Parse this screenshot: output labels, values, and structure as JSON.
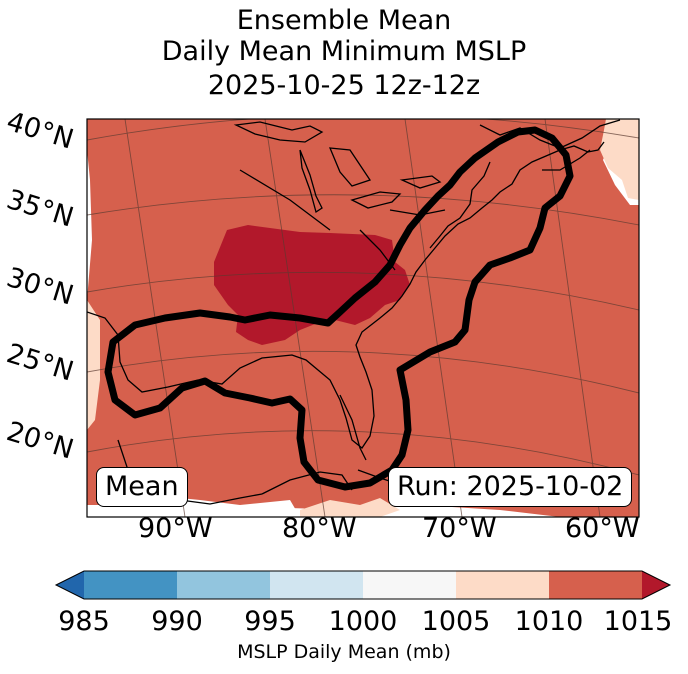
{
  "title": {
    "line1": "Ensemble Mean",
    "line2": "Daily Mean Minimum MSLP",
    "line3": "2025-10-25 12z-12z"
  },
  "map": {
    "lat_labels": [
      "40°N",
      "35°N",
      "30°N",
      "25°N",
      "20°N"
    ],
    "lon_labels": [
      "90°W",
      "80°W",
      "70°W",
      "60°W"
    ],
    "mean_tag": "Mean",
    "run_tag": "Run: 2025-10-02",
    "colors": {
      "field_1010_1015": "#d6604d",
      "field_1015_plus": "#b2182b",
      "field_1005_1010": "#fddbc7",
      "contour": "#000000",
      "coast": "#000000",
      "grid": "#5a3a30"
    }
  },
  "colorbar": {
    "ticks": [
      "985",
      "990",
      "995",
      "1000",
      "1005",
      "1010",
      "1015"
    ],
    "label": "MSLP Daily Mean (mb)",
    "bins": [
      {
        "from": 985,
        "to": 990,
        "color": "#4393c3"
      },
      {
        "from": 990,
        "to": 995,
        "color": "#92c5de"
      },
      {
        "from": 995,
        "to": 1000,
        "color": "#d1e5f0"
      },
      {
        "from": 1000,
        "to": 1005,
        "color": "#f7f7f7"
      },
      {
        "from": 1005,
        "to": 1010,
        "color": "#fddbc7"
      },
      {
        "from": 1010,
        "to": 1015,
        "color": "#d6604d"
      }
    ],
    "under_color": "#2166ac",
    "over_color": "#b2182b"
  }
}
